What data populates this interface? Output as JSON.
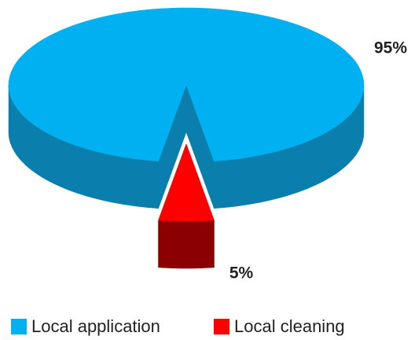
{
  "chart_data": {
    "type": "pie",
    "categories": [
      "Local application",
      "Local cleaning"
    ],
    "values": [
      95,
      5
    ],
    "value_labels": [
      "95%",
      "5%"
    ],
    "colors": [
      "#00b0f0",
      "#ff0000"
    ],
    "side_colors": [
      "#0a7fae",
      "#8b0000"
    ],
    "exploded": [
      false,
      true
    ],
    "legend": "bottom"
  }
}
